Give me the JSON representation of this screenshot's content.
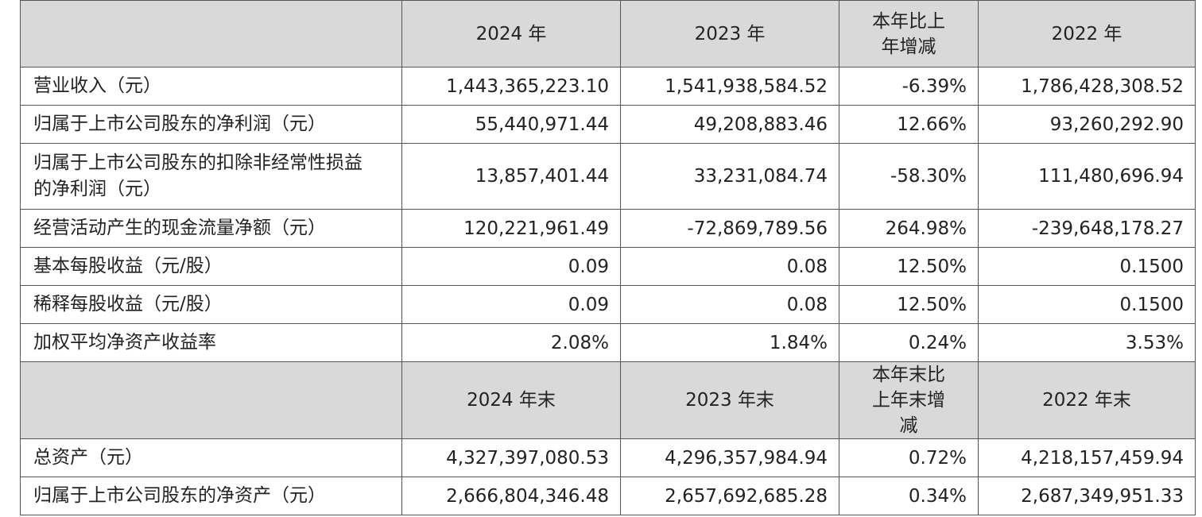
{
  "table": {
    "header": [
      "2024 年",
      "2023 年",
      "本年比上年增减",
      "2022 年"
    ],
    "rows": [
      [
        "营业收入（元）",
        "1,443,365,223.10",
        "1,541,938,584.52",
        "-6.39%",
        "1,786,428,308.52"
      ],
      [
        "归属于上市公司股东的净利润（元）",
        "55,440,971.44",
        "49,208,883.46",
        "12.66%",
        "93,260,292.90"
      ],
      [
        "归属于上市公司股东的扣除非经常性损益的净利润（元）",
        "13,857,401.44",
        "33,231,084.74",
        "-58.30%",
        "111,480,696.94"
      ],
      [
        "经营活动产生的现金流量净额（元）",
        "120,221,961.49",
        "-72,869,789.56",
        "264.98%",
        "-239,648,178.27"
      ],
      [
        "基本每股收益（元/股）",
        "0.09",
        "0.08",
        "12.50%",
        "0.1500"
      ],
      [
        "稀释每股收益（元/股）",
        "0.09",
        "0.08",
        "12.50%",
        "0.1500"
      ],
      [
        "加权平均净资产收益率",
        "2.08%",
        "1.84%",
        "0.24%",
        "3.53%"
      ]
    ],
    "header_2": [
      "2024 年末",
      "2023 年末",
      "本年末比上年末增减",
      "2022 年末"
    ],
    "rows_2": [
      [
        "总资产（元）",
        "4,327,397,080.53",
        "4,296,357,984.94",
        "0.72%",
        "4,218,157,459.94"
      ],
      [
        "归属于上市公司股东的净资产（元）",
        "2,666,804,346.48",
        "2,657,692,685.28",
        "0.34%",
        "2,687,349,951.33"
      ]
    ]
  }
}
